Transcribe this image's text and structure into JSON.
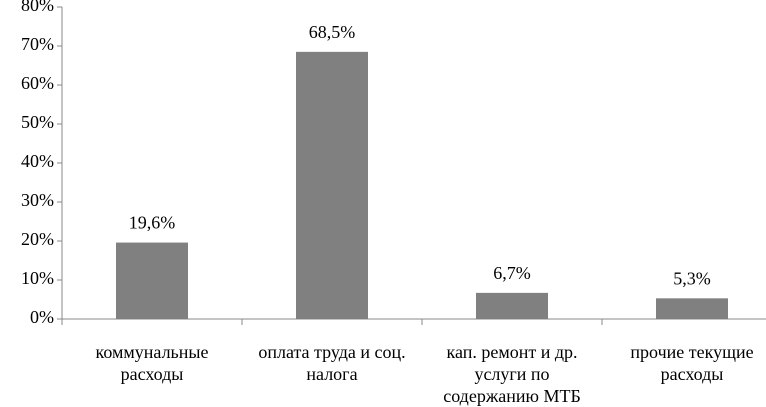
{
  "chart_data": {
    "type": "bar",
    "categories": [
      "коммунальные расходы",
      "оплата труда и соц. налога",
      "кап. ремонт и др. услуги по содержанию МТБ",
      "прочие текущие расходы"
    ],
    "values": [
      19.6,
      68.5,
      6.7,
      5.3
    ],
    "value_labels": [
      "19,6%",
      "68,5%",
      "6,7%",
      "5,3%"
    ],
    "color": "#808080",
    "ylim": [
      0,
      80
    ],
    "yticks": [
      {
        "value": 0,
        "label": "0%"
      },
      {
        "value": 10,
        "label": "10%"
      },
      {
        "value": 20,
        "label": "20%"
      },
      {
        "value": 30,
        "label": "30%"
      },
      {
        "value": 40,
        "label": "40%"
      },
      {
        "value": 50,
        "label": "50%"
      },
      {
        "value": 60,
        "label": "60%"
      },
      {
        "value": 70,
        "label": "70%"
      },
      {
        "value": 80,
        "label": "80%"
      }
    ],
    "grid": false
  }
}
